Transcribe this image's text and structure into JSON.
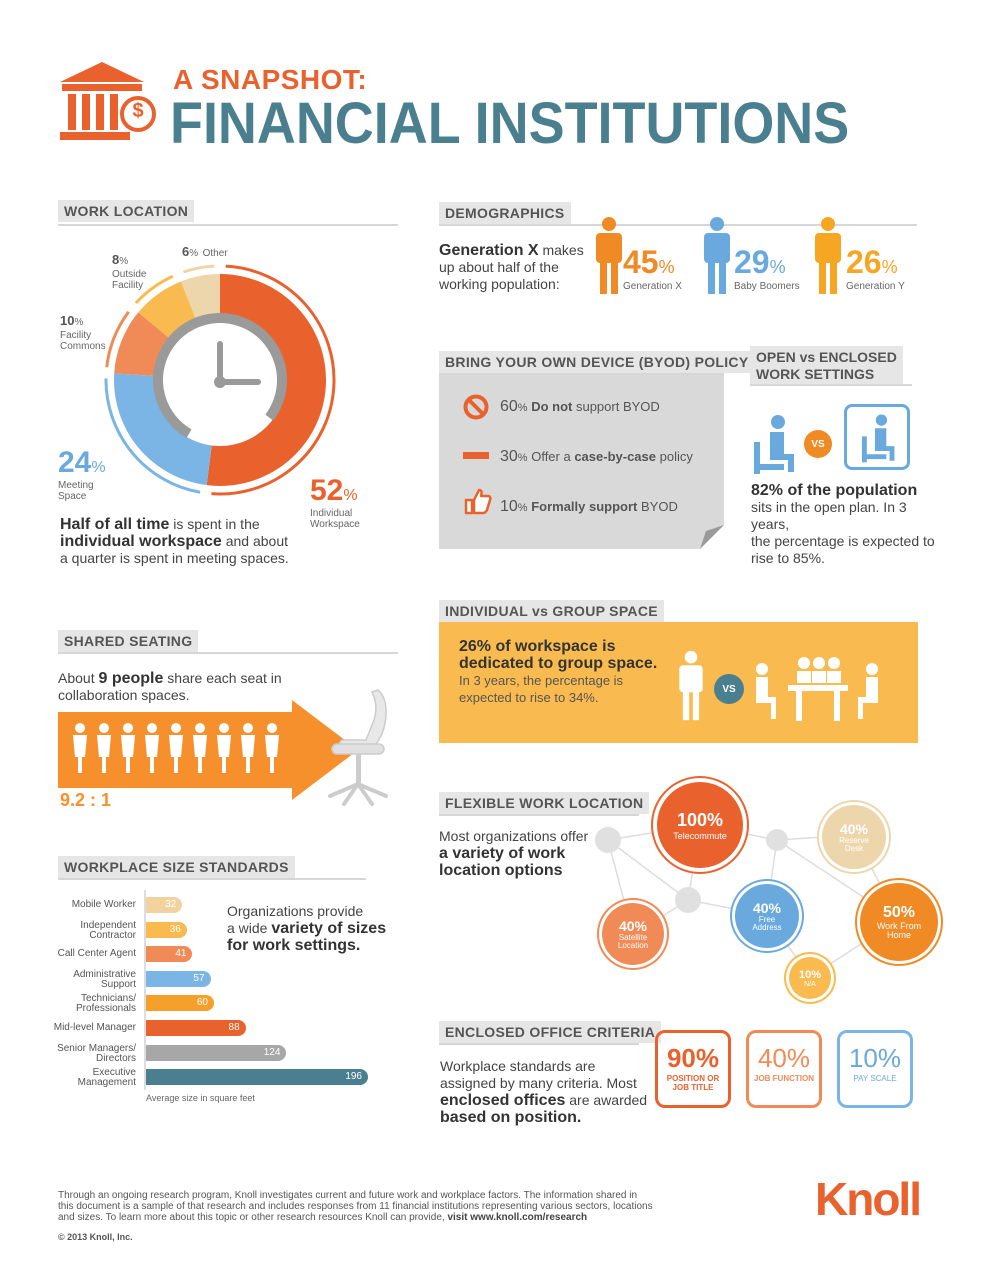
{
  "header": {
    "subtitle": "A SNAPSHOT:",
    "title": "FINANCIAL INSTITUTIONS",
    "dollar": "$"
  },
  "work_location": {
    "title": "WORK LOCATION",
    "segments": [
      {
        "pct": "52",
        "label": "Individual Workspace",
        "color": "#e9622e"
      },
      {
        "pct": "24",
        "label": "Meeting Space",
        "color": "#7ab5e5"
      },
      {
        "pct": "10",
        "label": "Facility Commons",
        "color": "#f08b57"
      },
      {
        "pct": "8",
        "label": "Outside Facility",
        "color": "#f9bb4f"
      },
      {
        "pct": "6",
        "label": "Other",
        "color": "#edd6ac"
      }
    ],
    "pct_sign": "%",
    "label_individual_1": "Individual",
    "label_individual_2": "Workspace",
    "label_meeting_1": "Meeting",
    "label_meeting_2": "Space",
    "label_facility_1": "Facility",
    "label_facility_2": "Commons",
    "label_outside_1": "Outside",
    "label_outside_2": "Facility",
    "label_other": "Other",
    "desc_b1": "Half of all time",
    "desc_t1": " is spent in the",
    "desc_b2": "individual workspace",
    "desc_t2": " and about",
    "desc_t3": "a quarter is spent in meeting spaces."
  },
  "demographics": {
    "title": "DEMOGRAPHICS",
    "desc_b": "Generation X",
    "desc_t1": " makes",
    "desc_t2": "up about half of the",
    "desc_t3": "working population:",
    "groups": [
      {
        "pct": "45",
        "label": "Generation X",
        "color": "#f08a24"
      },
      {
        "pct": "29",
        "label": "Baby Boomers",
        "color": "#6aa9de"
      },
      {
        "pct": "26",
        "label": "Generation Y",
        "color": "#f5a623"
      }
    ],
    "pct_sign": "%"
  },
  "byod": {
    "title": "BRING YOUR OWN DEVICE (BYOD) POLICY",
    "items": [
      {
        "pct": "60",
        "pre": "",
        "bold": "Do not",
        "post": " support BYOD"
      },
      {
        "pct": "30",
        "pre": "Offer a ",
        "bold": "case-by-case",
        "post": " policy"
      },
      {
        "pct": "10",
        "pre": "",
        "bold": "Formally support",
        "post": " BYOD"
      }
    ],
    "pct_sign": "%"
  },
  "open_enclosed": {
    "title_1": "OPEN vs ENCLOSED",
    "title_2": "WORK SETTINGS",
    "vs": "VS",
    "desc_b": "82% of the population",
    "desc_t1": "sits in the open plan. In 3 years,",
    "desc_t2": "the percentage is expected to",
    "desc_t3": "rise to 85%."
  },
  "individual_group": {
    "title": "INDIVIDUAL vs GROUP SPACE",
    "desc_b1": "26% of workspace is",
    "desc_b2": "dedicated to group space.",
    "desc_t1": "In 3 years, the percentage is",
    "desc_t2": "expected to rise to 34%.",
    "vs": "VS"
  },
  "shared_seating": {
    "title": "SHARED SEATING",
    "desc_t1": "About ",
    "desc_b": "9 people",
    "desc_t2": " share each seat in",
    "desc_t3": "collaboration spaces.",
    "ratio": "9.2 : 1"
  },
  "workplace_size": {
    "title": "WORKPLACE SIZE STANDARDS",
    "desc_t1": "Organizations provide",
    "desc_t2": "a wide ",
    "desc_b1": "variety of sizes",
    "desc_b2": "for work settings.",
    "footnote": "Average size in square feet",
    "bars": [
      {
        "label1": "Mobile Worker",
        "label2": "",
        "value": 32,
        "color": "#f2d3a0"
      },
      {
        "label1": "Independent",
        "label2": "Contractor",
        "value": 36,
        "color": "#f9bb4f"
      },
      {
        "label1": "Call Center Agent",
        "label2": "",
        "value": 41,
        "color": "#f08b57"
      },
      {
        "label1": "Administrative",
        "label2": "Support",
        "value": 57,
        "color": "#7ab5e5"
      },
      {
        "label1": "Technicians/",
        "label2": "Professionals",
        "value": 60,
        "color": "#f5a02a"
      },
      {
        "label1": "Mid-level Manager",
        "label2": "",
        "value": 88,
        "color": "#e9622e"
      },
      {
        "label1": "Senior Managers/",
        "label2": "Directors",
        "value": 124,
        "color": "#a7a7a7"
      },
      {
        "label1": "Executive",
        "label2": "Management",
        "value": 196,
        "color": "#4a7f90"
      }
    ]
  },
  "flexible": {
    "title": "FLEXIBLE WORK LOCATION",
    "desc_t1": "Most organizations offer",
    "desc_b1": "a variety of work",
    "desc_b2": "location options",
    "nodes": [
      {
        "pct": "100%",
        "label1": "Telecommute",
        "label2": ""
      },
      {
        "pct": "40%",
        "label1": "Reserve",
        "label2": "Desk"
      },
      {
        "pct": "40%",
        "label1": "Free",
        "label2": "Address"
      },
      {
        "pct": "50%",
        "label1": "Work From",
        "label2": "Home"
      },
      {
        "pct": "40%",
        "label1": "Satellite",
        "label2": "Location"
      },
      {
        "pct": "10%",
        "label1": "N/A",
        "label2": ""
      }
    ]
  },
  "enclosed_office": {
    "title": "ENCLOSED OFFICE CRITERIA",
    "desc_t1": "Workplace standards are",
    "desc_t2": "assigned by many criteria. Most",
    "desc_b1": "enclosed offices",
    "desc_t3": " are awarded",
    "desc_b2": "based on position.",
    "criteria": [
      {
        "pct": "90%",
        "label1": "POSITION OR",
        "label2": "JOB TITLE",
        "color": "#e9622e"
      },
      {
        "pct": "40%",
        "label1": "JOB FUNCTION",
        "label2": "",
        "color": "#f08b57"
      },
      {
        "pct": "10%",
        "label1": "PAY SCALE",
        "label2": "",
        "color": "#7ab5e5"
      }
    ]
  },
  "footer": {
    "text1": "Through an ongoing research program, Knoll investigates current and future work and workplace factors. The information shared in",
    "text2": "this document is a sample of that research and includes responses from 11 financial institutions representing various sectors, locations",
    "text3": "and sizes. To learn more about this topic or other research resources Knoll can provide, ",
    "link": "visit www.knoll.com/research",
    "copyright": "© 2013 Knoll, Inc.",
    "logo": "Knoll"
  }
}
